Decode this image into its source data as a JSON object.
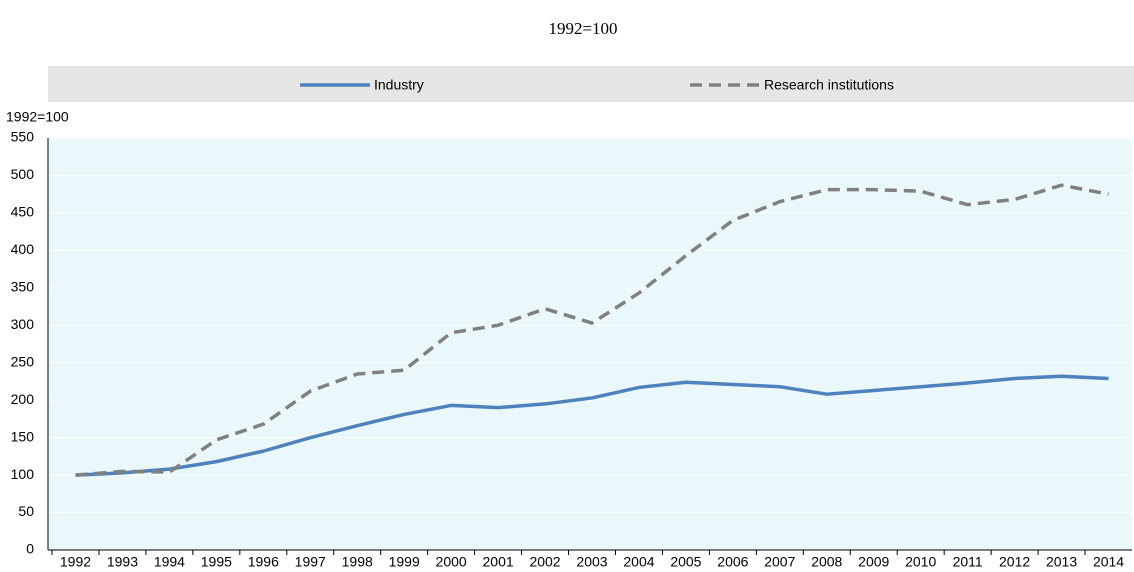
{
  "chart_data": {
    "type": "line",
    "title": "1992=100",
    "y_label": "1992=100",
    "categories": [
      "1992",
      "1993",
      "1994",
      "1995",
      "1996",
      "1997",
      "1998",
      "1999",
      "2000",
      "2001",
      "2002",
      "2003",
      "2004",
      "2005",
      "2006",
      "2007",
      "2008",
      "2009",
      "2010",
      "2011",
      "2012",
      "2013",
      "2014"
    ],
    "series": [
      {
        "name": "Industry",
        "color": "#4f81bd",
        "dash": false,
        "values": [
          100,
          103,
          108,
          118,
          132,
          150,
          166,
          181,
          193,
          190,
          195,
          203,
          217,
          224,
          221,
          218,
          208,
          213,
          218,
          223,
          229,
          232,
          229
        ]
      },
      {
        "name": "Research institutions",
        "color": "#808080",
        "dash": true,
        "values": [
          100,
          105,
          104,
          147,
          168,
          212,
          235,
          240,
          290,
          300,
          322,
          303,
          343,
          393,
          440,
          465,
          481,
          481,
          479,
          461,
          468,
          487,
          475
        ]
      }
    ],
    "ylim": [
      0,
      550
    ],
    "yticks": [
      0,
      50,
      100,
      150,
      200,
      250,
      300,
      350,
      400,
      450,
      500,
      550
    ],
    "grid": true
  }
}
